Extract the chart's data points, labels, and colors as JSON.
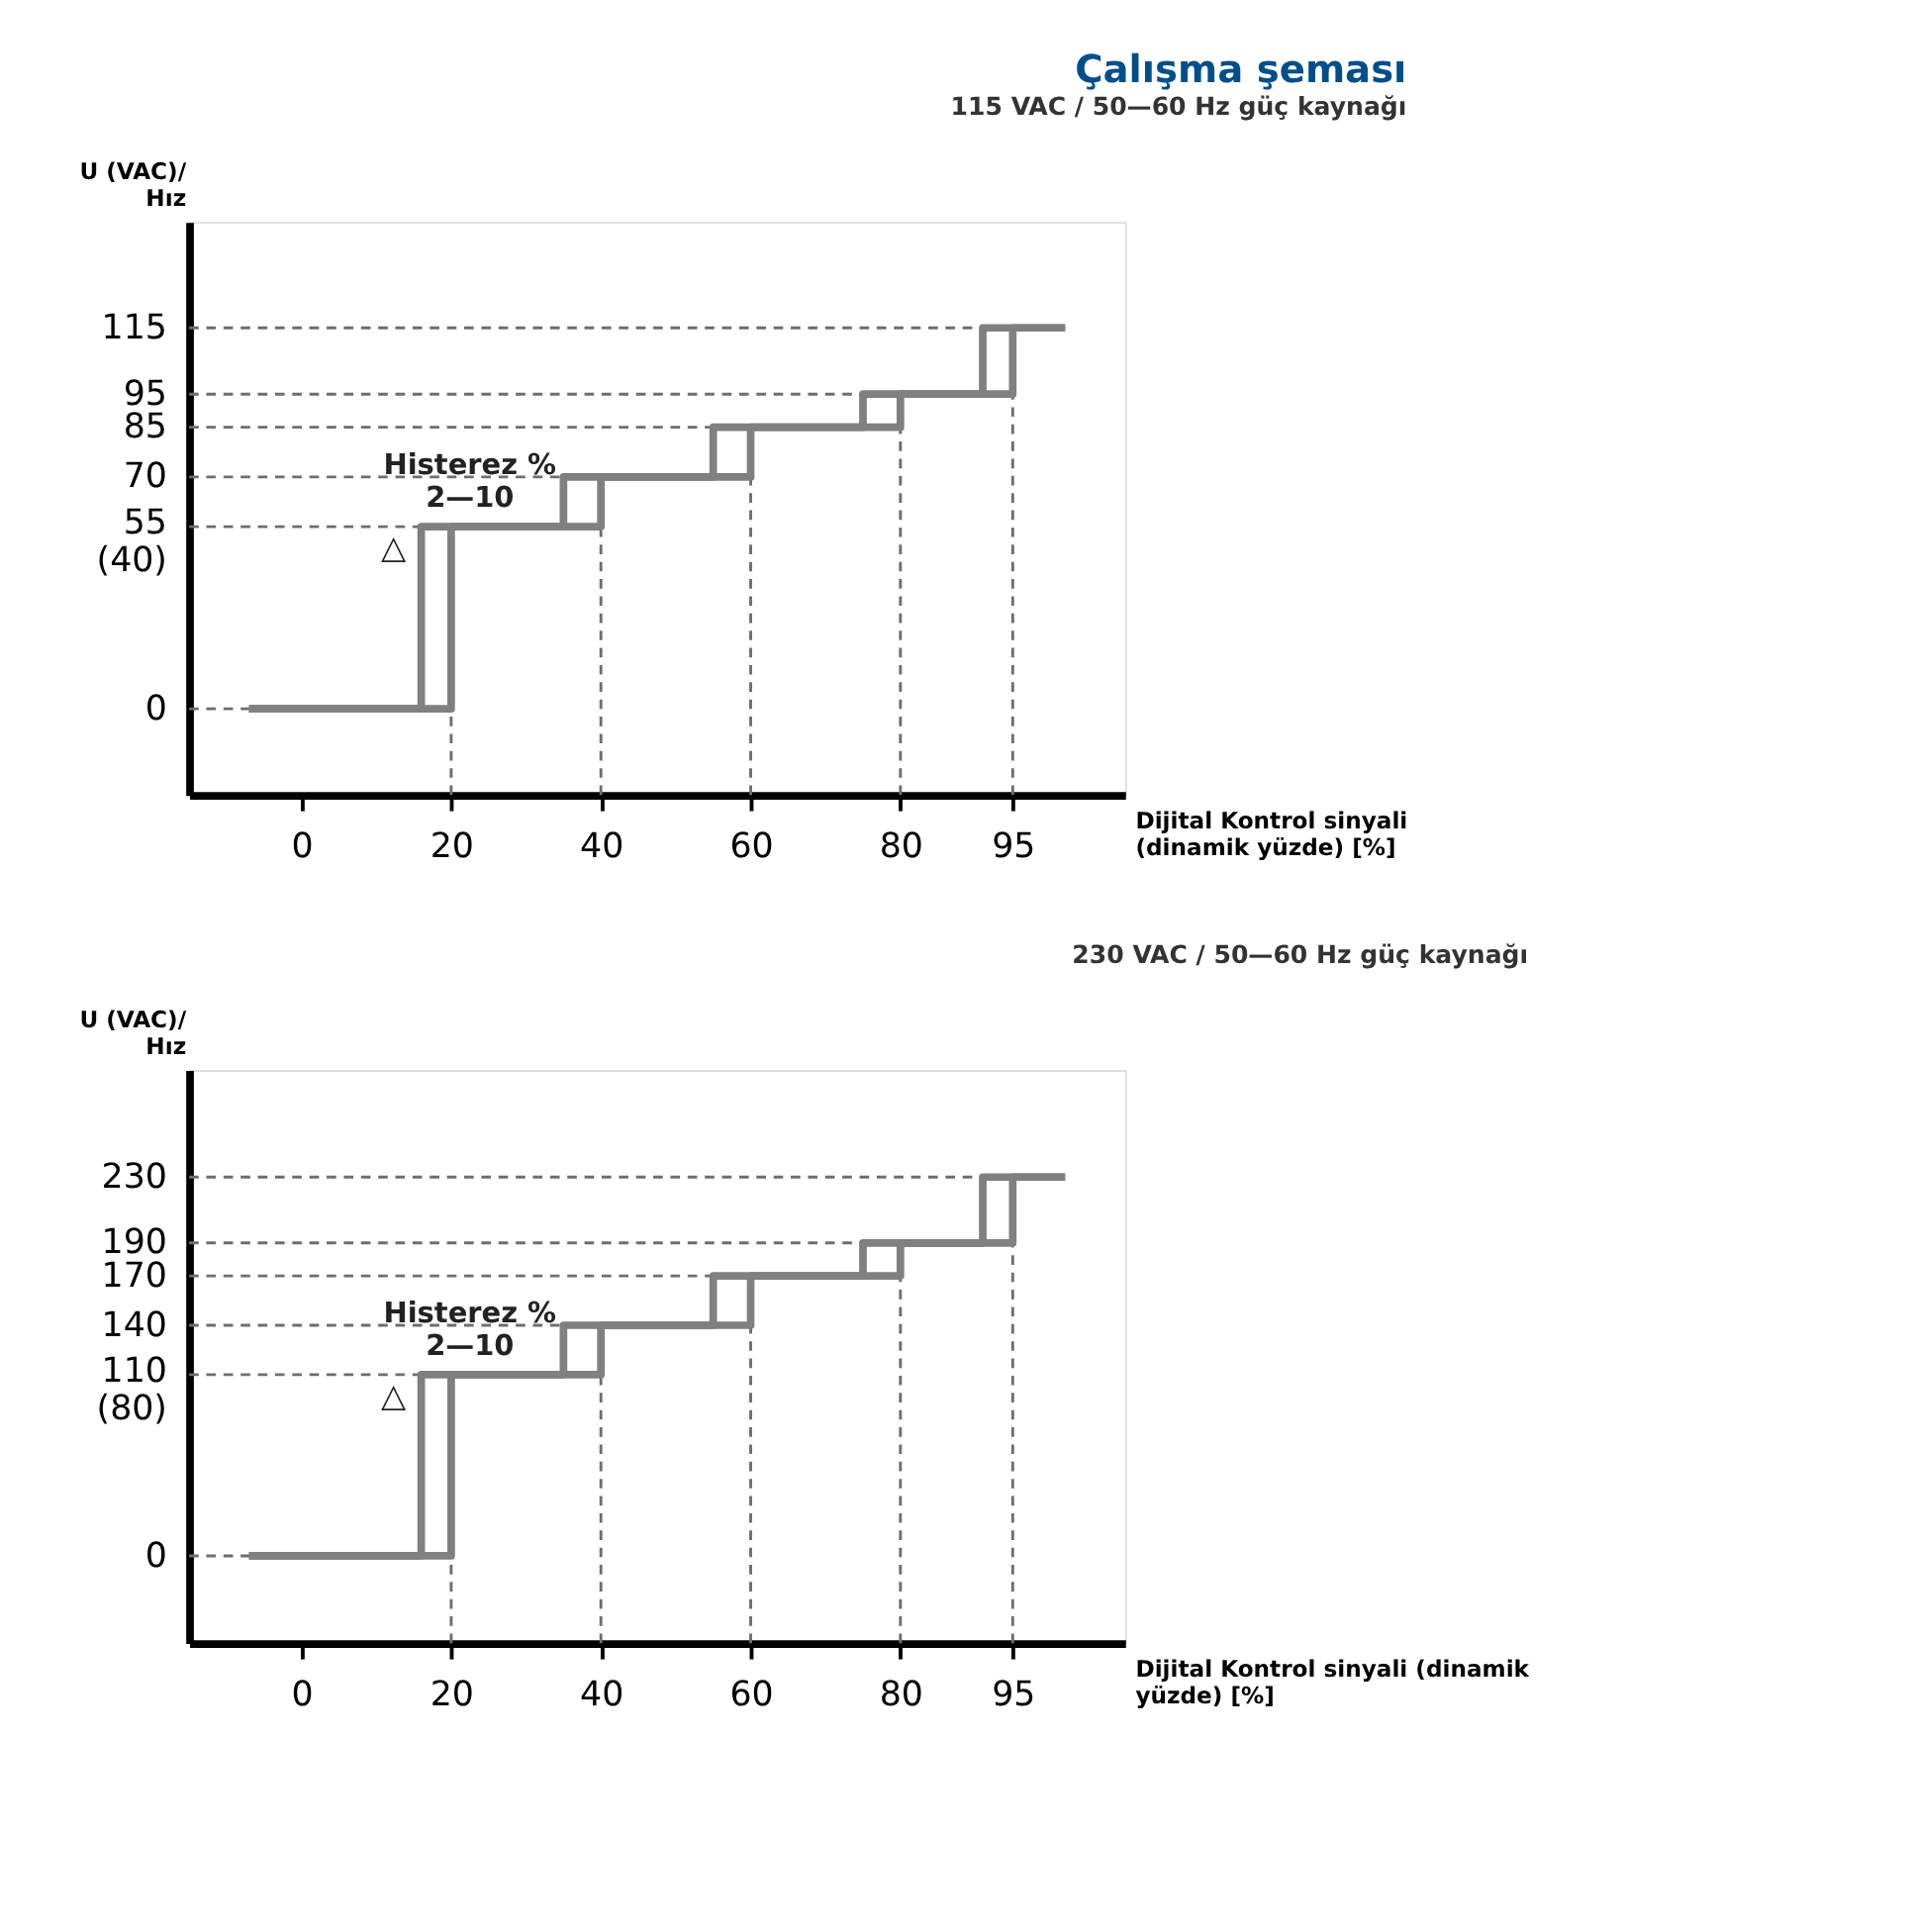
{
  "chart_data": [
    {
      "type": "line",
      "title": "Çalışma şeması",
      "subtitle": "115 VAC / 50—60 Hz güç kaynağı",
      "xlabel": "Dijital Kontrol sinyali\n(dinamik yüzde) [%]",
      "ylabel": "U (VAC)/\nHız",
      "series": [
        {
          "color": "#808080",
          "x": [
            -7,
            20,
            20,
            40,
            40,
            60,
            60,
            80,
            80,
            95,
            95,
            102
          ],
          "values": [
            0,
            0,
            55,
            55,
            70,
            70,
            85,
            85,
            95,
            95,
            115,
            115
          ]
        },
        {
          "color": "#808080",
          "x": [
            102,
            91,
            91,
            75,
            75,
            55,
            55,
            35,
            35,
            16,
            16,
            -7
          ],
          "values": [
            115,
            115,
            95,
            95,
            85,
            85,
            70,
            70,
            55,
            55,
            0,
            0
          ]
        }
      ],
      "xlim": [
        -15,
        110
      ],
      "xticks": [
        0,
        20,
        40,
        60,
        80,
        95
      ],
      "ylim": [
        -26,
        147
      ],
      "yticks": [
        0,
        {
          "value": 55,
          "label": "55\n(40)"
        },
        70,
        85,
        95,
        115
      ],
      "ref_lines": [
        {
          "axis": "y",
          "value": 0,
          "color": "#6e6e6e",
          "line_style": "dashed"
        },
        {
          "axis": "y",
          "value": 55,
          "color": "#6e6e6e",
          "line_style": "dashed"
        },
        {
          "axis": "y",
          "value": 70,
          "color": "#6e6e6e",
          "line_style": "dashed"
        },
        {
          "axis": "y",
          "value": 85,
          "color": "#6e6e6e",
          "line_style": "dashed"
        },
        {
          "axis": "y",
          "value": 95,
          "color": "#6e6e6e",
          "line_style": "dashed"
        },
        {
          "axis": "y",
          "value": 115,
          "color": "#6e6e6e",
          "line_style": "dashed"
        },
        {
          "axis": "x",
          "value": 20,
          "color": "#6e6e6e",
          "line_style": "dashed"
        },
        {
          "axis": "x",
          "value": 40,
          "color": "#6e6e6e",
          "line_style": "dashed"
        },
        {
          "axis": "x",
          "value": 60,
          "color": "#6e6e6e",
          "line_style": "dashed"
        },
        {
          "axis": "x",
          "value": 80,
          "color": "#6e6e6e",
          "line_style": "dashed"
        },
        {
          "axis": "x",
          "value": 95,
          "color": "#6e6e6e",
          "line_style": "dashed"
        }
      ],
      "annotations": [
        "Histerez %\n2—10",
        "△"
      ],
      "grid": false,
      "marker": "none",
      "line_style": "solid"
    },
    {
      "type": "line",
      "subtitle": "230 VAC / 50—60 Hz güç kaynağı",
      "xlabel": "Dijital Kontrol sinyali (dinamik\nyüzde) [%]",
      "ylabel": "U (VAC)/\nHız",
      "series": [
        {
          "color": "#808080",
          "x": [
            -7,
            20,
            20,
            40,
            40,
            60,
            60,
            80,
            80,
            95,
            95,
            102
          ],
          "values": [
            0,
            0,
            110,
            110,
            140,
            140,
            170,
            170,
            190,
            190,
            230,
            230
          ]
        },
        {
          "color": "#808080",
          "x": [
            102,
            91,
            91,
            75,
            75,
            55,
            55,
            35,
            35,
            16,
            16,
            -7
          ],
          "values": [
            230,
            230,
            190,
            190,
            170,
            170,
            140,
            140,
            110,
            110,
            0,
            0
          ]
        }
      ],
      "xlim": [
        -15,
        110
      ],
      "xticks": [
        0,
        20,
        40,
        60,
        80,
        95
      ],
      "ylim": [
        -53,
        295
      ],
      "yticks": [
        0,
        {
          "value": 110,
          "label": "110\n(80)"
        },
        140,
        170,
        190,
        230
      ],
      "ref_lines": [
        {
          "axis": "y",
          "value": 0,
          "color": "#6e6e6e",
          "line_style": "dashed"
        },
        {
          "axis": "y",
          "value": 110,
          "color": "#6e6e6e",
          "line_style": "dashed"
        },
        {
          "axis": "y",
          "value": 140,
          "color": "#6e6e6e",
          "line_style": "dashed"
        },
        {
          "axis": "y",
          "value": 170,
          "color": "#6e6e6e",
          "line_style": "dashed"
        },
        {
          "axis": "y",
          "value": 190,
          "color": "#6e6e6e",
          "line_style": "dashed"
        },
        {
          "axis": "y",
          "value": 230,
          "color": "#6e6e6e",
          "line_style": "dashed"
        },
        {
          "axis": "x",
          "value": 20,
          "color": "#6e6e6e",
          "line_style": "dashed"
        },
        {
          "axis": "x",
          "value": 40,
          "color": "#6e6e6e",
          "line_style": "dashed"
        },
        {
          "axis": "x",
          "value": 60,
          "color": "#6e6e6e",
          "line_style": "dashed"
        },
        {
          "axis": "x",
          "value": 80,
          "color": "#6e6e6e",
          "line_style": "dashed"
        },
        {
          "axis": "x",
          "value": 95,
          "color": "#6e6e6e",
          "line_style": "dashed"
        }
      ],
      "annotations": [
        "Histerez %\n2—10",
        "△"
      ],
      "grid": false,
      "marker": "none",
      "line_style": "solid"
    }
  ]
}
